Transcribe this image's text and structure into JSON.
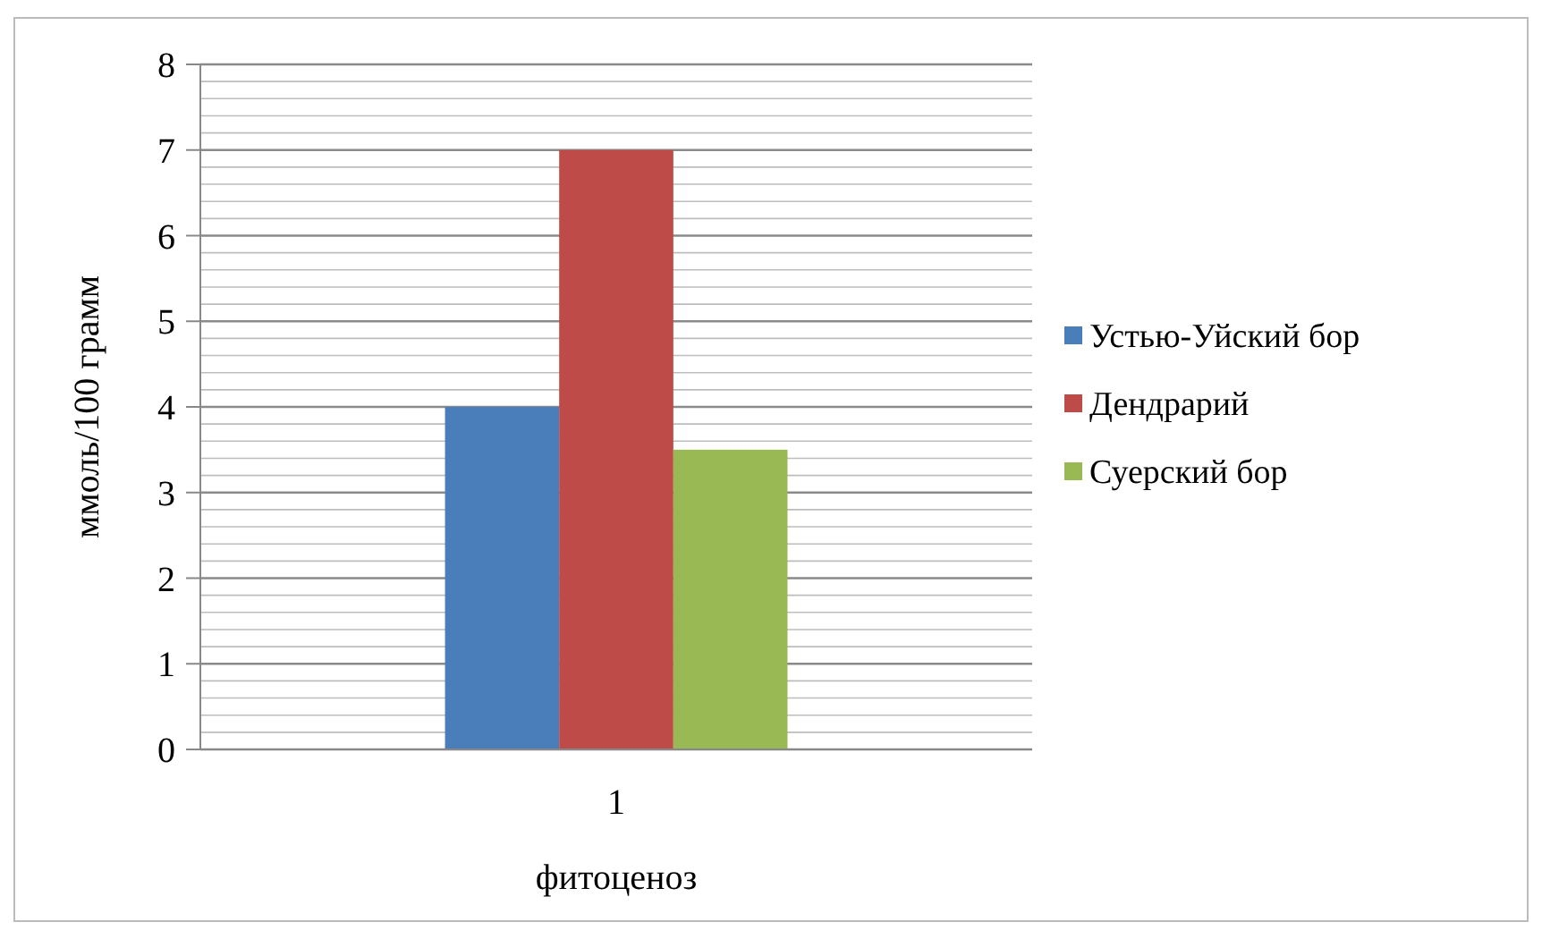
{
  "chart_data": {
    "type": "bar",
    "xlabel": "фитоценоз",
    "ylabel": "ммоль/100 грамм",
    "categories": [
      "1"
    ],
    "series": [
      {
        "name": "Устью-Уйский бор",
        "color": "#4a7ebb",
        "values": [
          4
        ]
      },
      {
        "name": "Дендрарий",
        "color": "#be4b48",
        "values": [
          7
        ]
      },
      {
        "name": "Суерский бор",
        "color": "#98b954",
        "values": [
          3.5
        ]
      }
    ],
    "ylim": [
      0,
      8
    ],
    "yticks": [
      0,
      {
        "value": 0.2,
        "label": null
      },
      {
        "value": 0.4,
        "label": null
      },
      {
        "value": 0.6,
        "label": null
      },
      {
        "value": 0.8,
        "label": null
      },
      1,
      {
        "value": 1.2,
        "label": null
      },
      {
        "value": 1.4,
        "label": null
      },
      {
        "value": 1.6,
        "label": null
      },
      {
        "value": 1.8,
        "label": null
      },
      2,
      {
        "value": 2.2,
        "label": null
      },
      {
        "value": 2.4,
        "label": null
      },
      {
        "value": 2.6,
        "label": null
      },
      {
        "value": 2.8,
        "label": null
      },
      3,
      {
        "value": 3.2,
        "label": null
      },
      {
        "value": 3.4,
        "label": null
      },
      {
        "value": 3.6,
        "label": null
      },
      {
        "value": 3.8,
        "label": null
      },
      4,
      {
        "value": 4.2,
        "label": null
      },
      {
        "value": 4.4,
        "label": null
      },
      {
        "value": 4.6,
        "label": null
      },
      {
        "value": 4.8,
        "label": null
      },
      5,
      {
        "value": 5.2,
        "label": null
      },
      {
        "value": 5.4,
        "label": null
      },
      {
        "value": 5.6,
        "label": null
      },
      {
        "value": 5.8,
        "label": null
      },
      6,
      {
        "value": 6.2,
        "label": null
      },
      {
        "value": 6.4,
        "label": null
      },
      {
        "value": 6.6,
        "label": null
      },
      {
        "value": 6.8,
        "label": null
      },
      7,
      {
        "value": 7.2,
        "label": null
      },
      {
        "value": 7.4,
        "label": null
      },
      {
        "value": 7.6,
        "label": null
      },
      {
        "value": 7.8,
        "label": null
      },
      8
    ],
    "grid": true,
    "legend": "right"
  }
}
